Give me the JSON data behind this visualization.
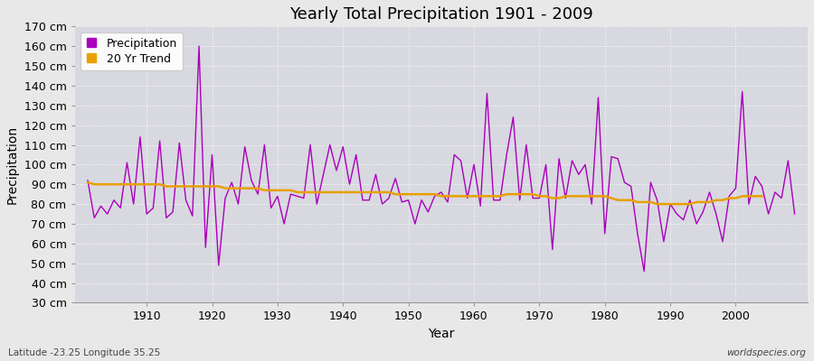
{
  "title": "Yearly Total Precipitation 1901 - 2009",
  "xlabel": "Year",
  "ylabel": "Precipitation",
  "lat_lon_label": "Latitude -23.25 Longitude 35.25",
  "watermark": "worldspecies.org",
  "precip_color": "#aa00bb",
  "trend_color": "#e8a000",
  "fig_bg_color": "#e8e8e8",
  "plot_bg_color": "#d8d8e0",
  "ylim": [
    30,
    170
  ],
  "ytick_step": 10,
  "years": [
    1901,
    1902,
    1903,
    1904,
    1905,
    1906,
    1907,
    1908,
    1909,
    1910,
    1911,
    1912,
    1913,
    1914,
    1915,
    1916,
    1917,
    1918,
    1919,
    1920,
    1921,
    1922,
    1923,
    1924,
    1925,
    1926,
    1927,
    1928,
    1929,
    1930,
    1931,
    1932,
    1933,
    1934,
    1935,
    1936,
    1937,
    1938,
    1939,
    1940,
    1941,
    1942,
    1943,
    1944,
    1945,
    1946,
    1947,
    1948,
    1949,
    1950,
    1951,
    1952,
    1953,
    1954,
    1955,
    1956,
    1957,
    1958,
    1959,
    1960,
    1961,
    1962,
    1963,
    1964,
    1965,
    1966,
    1967,
    1968,
    1969,
    1970,
    1971,
    1972,
    1973,
    1974,
    1975,
    1976,
    1977,
    1978,
    1979,
    1980,
    1981,
    1982,
    1983,
    1984,
    1985,
    1986,
    1987,
    1988,
    1989,
    1990,
    1991,
    1992,
    1993,
    1994,
    1995,
    1996,
    1997,
    1998,
    1999,
    2000,
    2001,
    2002,
    2003,
    2004,
    2005,
    2006,
    2007,
    2008,
    2009
  ],
  "precipitation": [
    92,
    73,
    79,
    75,
    82,
    78,
    101,
    80,
    114,
    75,
    78,
    112,
    73,
    76,
    111,
    82,
    74,
    160,
    58,
    105,
    49,
    83,
    91,
    80,
    109,
    92,
    85,
    110,
    78,
    84,
    70,
    85,
    84,
    83,
    110,
    80,
    95,
    110,
    97,
    109,
    90,
    105,
    82,
    82,
    95,
    80,
    83,
    93,
    81,
    82,
    70,
    82,
    76,
    84,
    86,
    81,
    105,
    102,
    83,
    100,
    79,
    136,
    82,
    82,
    105,
    124,
    82,
    110,
    83,
    83,
    100,
    57,
    103,
    83,
    102,
    95,
    100,
    80,
    134,
    65,
    104,
    103,
    91,
    89,
    65,
    46,
    91,
    82,
    61,
    80,
    75,
    72,
    82,
    70,
    76,
    86,
    75,
    61,
    84,
    88,
    137,
    80,
    94,
    89,
    75,
    86,
    83,
    102,
    75
  ],
  "trend": [
    91,
    90,
    90,
    90,
    90,
    90,
    90,
    90,
    90,
    90,
    90,
    90,
    89,
    89,
    89,
    89,
    89,
    89,
    89,
    89,
    89,
    88,
    88,
    88,
    88,
    88,
    88,
    87,
    87,
    87,
    87,
    87,
    86,
    86,
    86,
    86,
    86,
    86,
    86,
    86,
    86,
    86,
    86,
    86,
    86,
    86,
    86,
    85,
    85,
    85,
    85,
    85,
    85,
    85,
    84,
    84,
    84,
    84,
    84,
    84,
    84,
    84,
    84,
    84,
    85,
    85,
    85,
    85,
    85,
    84,
    84,
    83,
    83,
    84,
    84,
    84,
    84,
    84,
    84,
    84,
    83,
    82,
    82,
    82,
    81,
    81,
    81,
    80,
    80,
    80,
    80,
    80,
    80,
    81,
    81,
    81,
    82,
    82,
    83,
    83,
    84,
    84,
    84,
    84,
    null,
    null,
    null,
    null,
    null
  ]
}
